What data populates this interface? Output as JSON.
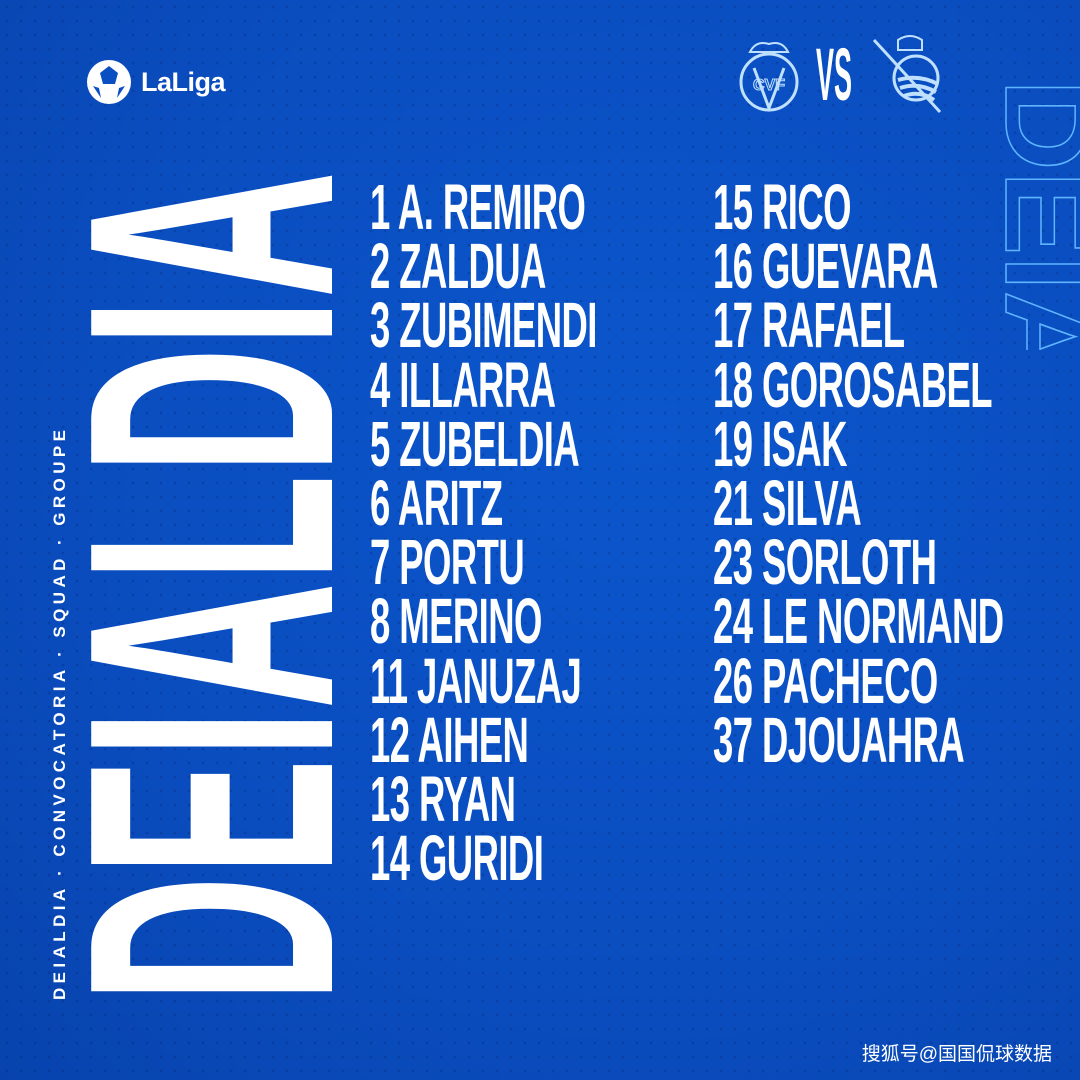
{
  "brand": {
    "logo_text": "LaLiga",
    "logo_icon": "laliga-ball-icon"
  },
  "match": {
    "home_crest": "villarreal-crest-icon",
    "home_crest_letters": "CVF",
    "vs_label": "VS",
    "away_crest": "real-sociedad-crest-icon"
  },
  "headline": "DEIALDIA",
  "outline_headline": "DEIALDIA",
  "side_caption": "DEIALDIA · CONVOCATORIA · SQUAD · GROUPE",
  "squad": {
    "left": [
      "1 A. REMIRO",
      "2 ZALDUA",
      "3 ZUBIMENDI",
      "4 ILLARRA",
      "5 ZUBELDIA",
      "6 ARITZ",
      "7 PORTU",
      "8 MERINO",
      "11 JANUZAJ",
      "12 AIHEN",
      "13 RYAN",
      "14 GURIDI"
    ],
    "right": [
      "15 RICO",
      "16 GUEVARA",
      "17 RAFAEL",
      "18 GOROSABEL",
      "19 ISAK",
      "21 SILVA",
      "23 SORLOTH",
      "24 LE NORMAND",
      "26 PACHECO",
      "37 DJOUAHRA"
    ]
  },
  "watermark": "搜狐号@国国侃球数据",
  "colors": {
    "background": "#0a4fc2",
    "text": "#ffffff",
    "outline": "#5fb4ff"
  }
}
